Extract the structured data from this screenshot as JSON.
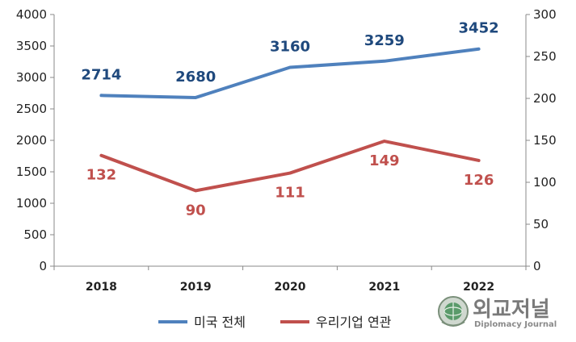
{
  "chart_data": {
    "type": "line",
    "title": "",
    "xlabel": "",
    "ylabel": "",
    "categories": [
      "2018",
      "2019",
      "2020",
      "2021",
      "2022"
    ],
    "series": [
      {
        "name": "미국 전체",
        "axis": "left",
        "color": "#4f81bd",
        "label_color": "#1f497d",
        "values": [
          2714,
          2680,
          3160,
          3259,
          3452
        ]
      },
      {
        "name": "우리기업 연관",
        "axis": "right",
        "color": "#c0504d",
        "label_color": "#c0504d",
        "values": [
          132,
          90,
          111,
          149,
          126
        ]
      }
    ],
    "y_left": {
      "lim": [
        0,
        4000
      ],
      "ticks": [
        0,
        500,
        1000,
        1500,
        2000,
        2500,
        3000,
        3500,
        4000
      ]
    },
    "y_right": {
      "lim": [
        0,
        300
      ],
      "ticks": [
        0,
        50,
        100,
        150,
        200,
        250,
        300
      ]
    },
    "grid": false,
    "legend_position": "bottom"
  },
  "watermark": {
    "name": "외교저널",
    "subtitle": "Diplomacy Journal",
    "icon": "globe-emblem-icon",
    "color": "#7a7a7a"
  }
}
